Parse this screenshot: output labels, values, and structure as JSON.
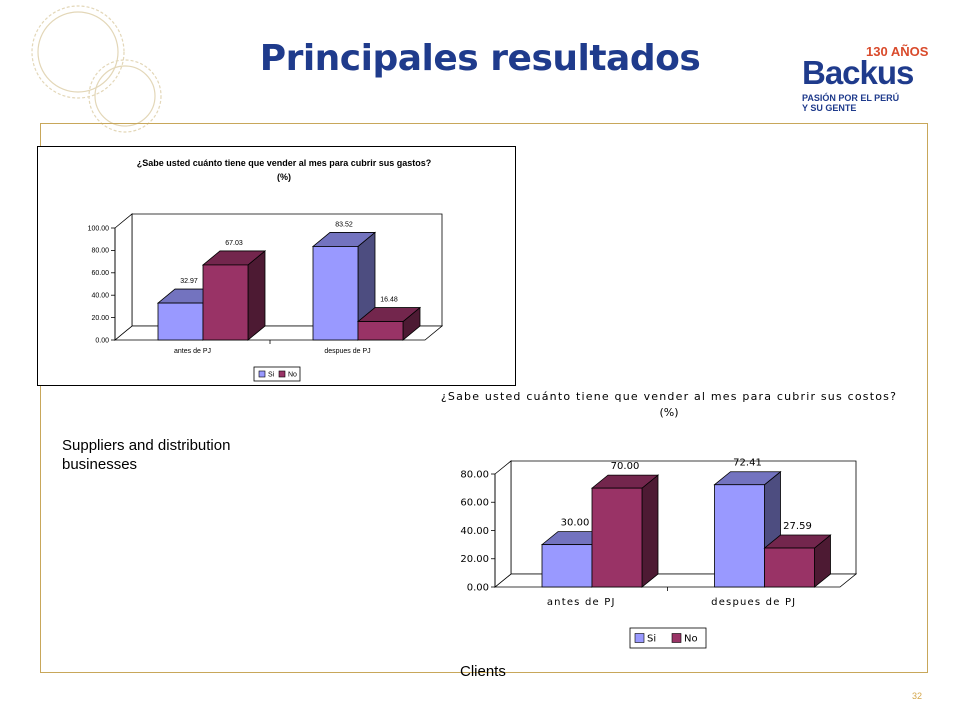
{
  "slide": {
    "title": "Principales resultados",
    "note": "Suppliers and distribution businesses",
    "caption": "Clients",
    "page_number": "32"
  },
  "logo": {
    "badge": "130 AÑOS",
    "name": "Backus",
    "tagline_line1": "PASIÓN POR EL PERÚ",
    "tagline_line2": "Y SU GENTE"
  },
  "colors": {
    "si": "#9999ff",
    "no": "#993366",
    "title": "#1f3b8c",
    "frame": "#c8a75a",
    "accent": "#d94a2b"
  },
  "chart_data": [
    {
      "type": "bar",
      "title": "¿Sabe usted cuánto tiene que vender al mes para cubrir sus gastos?",
      "subtitle": "(%)",
      "categories": [
        "antes de PJ",
        "despues de PJ"
      ],
      "series": [
        {
          "name": "Si",
          "values": [
            32.97,
            83.52
          ],
          "labels": [
            "32.97",
            "83.52"
          ]
        },
        {
          "name": "No",
          "values": [
            67.03,
            16.48
          ],
          "labels": [
            "67.03",
            "16.48"
          ]
        }
      ],
      "ylim": [
        0,
        100
      ],
      "yticks": [
        "0.00",
        "20.00",
        "40.00",
        "60.00",
        "80.00",
        "100.00"
      ],
      "legend": "bottom",
      "style": "3d"
    },
    {
      "type": "bar",
      "title": "¿Sabe usted cuánto tiene que vender al mes para cubrir sus costos?",
      "subtitle": "(%)",
      "categories": [
        "antes de PJ",
        "despues de PJ"
      ],
      "series": [
        {
          "name": "Si",
          "values": [
            30.0,
            72.41
          ],
          "labels": [
            "30.00",
            "72.41"
          ]
        },
        {
          "name": "No",
          "values": [
            70.0,
            27.59
          ],
          "labels": [
            "70.00",
            "27.59"
          ]
        }
      ],
      "ylim": [
        0,
        80
      ],
      "yticks": [
        "0.00",
        "20.00",
        "40.00",
        "60.00",
        "80.00"
      ],
      "legend": "bottom",
      "style": "3d"
    }
  ]
}
